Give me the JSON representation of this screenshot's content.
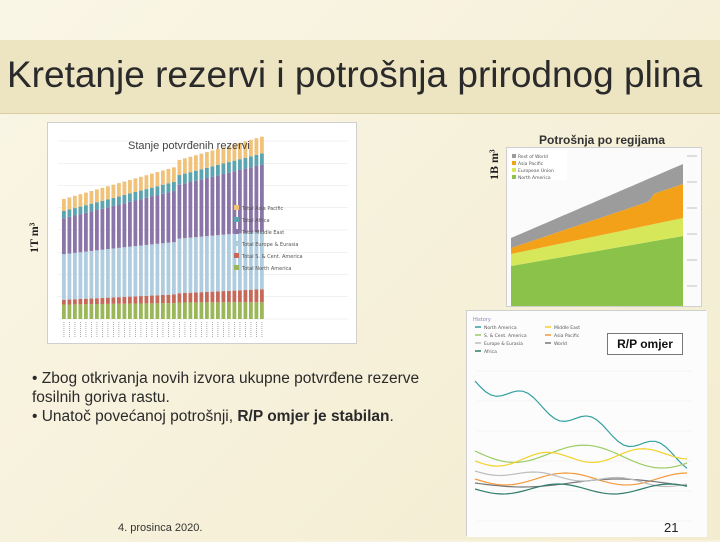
{
  "title": "Kretanje rezervi i potrošnja prirodnog plina",
  "left_chart": {
    "title": "Stanje potvrđenih rezervi",
    "ylabel": "1T m³",
    "legend": [
      "Total Asia Pacific",
      "Total Africa",
      "Total Middle East",
      "Total Europe & Eurasia",
      "Total S. & Cent. America",
      "Total North America"
    ],
    "colors": [
      "#f0c27a",
      "#5aa5b0",
      "#8a74a8",
      "#b0cde0",
      "#c56a5a",
      "#9ab85a"
    ]
  },
  "right_chart": {
    "title": "Potrošnja po regijama",
    "ylabel": "1B m³",
    "legend": [
      "Rest of World",
      "Asia Pacific",
      "European Union",
      "North America"
    ]
  },
  "rp_chart": {
    "tag": "R/P omjer",
    "legend_title": "History",
    "legend": [
      "North America",
      "S. & Cent. America",
      "Europe & Eurasia",
      "Africa",
      "Middle East",
      "Asia Pacific",
      "World"
    ]
  },
  "bullets": {
    "b1": "• Zbog otkrivanja novih izvora ukupne potvrđene rezerve fosilnih goriva rastu.",
    "b2_pre": "• Unatoč povećanoj potrošnji, ",
    "b2_bold": "R/P omjer je stabilan",
    "b2_post": "."
  },
  "footer": {
    "date": "4. prosinca 2020.",
    "page": "21"
  }
}
